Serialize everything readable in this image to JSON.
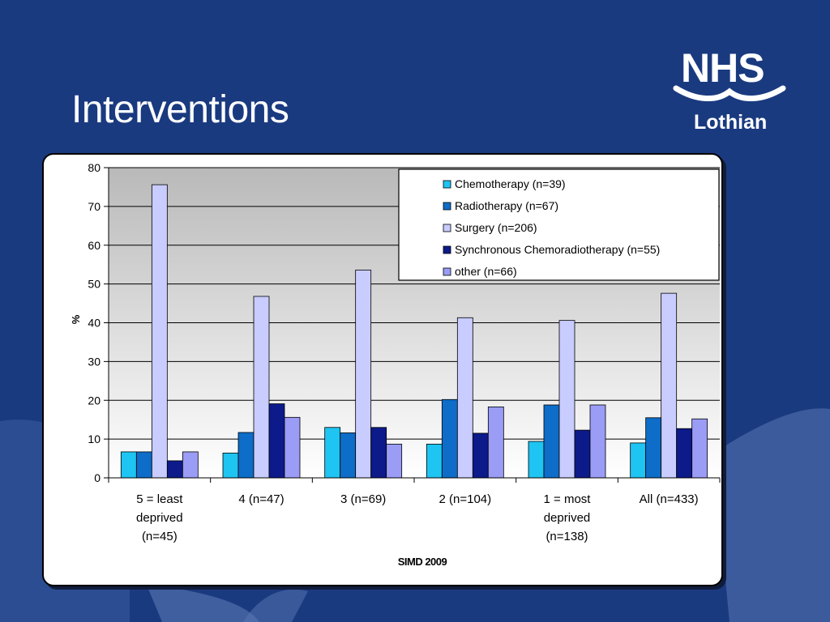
{
  "slide": {
    "title": "Interventions"
  },
  "logo": {
    "text": "NHS",
    "region": "Lothian"
  },
  "colors": {
    "background": "#1a3a80",
    "chemotherapy": "#1ec4f2",
    "radiotherapy": "#0d6dc8",
    "surgery": "#c8ccff",
    "synchronous": "#0c1a8a",
    "other": "#9a9cf6"
  },
  "chart_data": {
    "type": "bar",
    "xlabel": "SIMD 2009",
    "ylabel": "%",
    "ylim": [
      0,
      80
    ],
    "yticks": [
      0,
      10,
      20,
      30,
      40,
      50,
      60,
      70,
      80
    ],
    "grid": true,
    "legend_position": "top-right",
    "categories": [
      [
        "5 = least",
        "deprived",
        "(n=45)"
      ],
      [
        "4 (n=47)"
      ],
      [
        "3 (n=69)"
      ],
      [
        "2 (n=104)"
      ],
      [
        "1 = most",
        "deprived",
        "(n=138)"
      ],
      [
        "All (n=433)"
      ]
    ],
    "series": [
      {
        "name": "Chemotherapy (n=39)",
        "color": "#1ec4f2",
        "values": [
          6.7,
          6.4,
          13.0,
          8.7,
          9.4,
          9.0
        ]
      },
      {
        "name": "Radiotherapy (n=67)",
        "color": "#0d6dc8",
        "values": [
          6.7,
          11.7,
          11.6,
          20.2,
          18.8,
          15.5
        ]
      },
      {
        "name": "Surgery (n=206)",
        "color": "#c8ccff",
        "values": [
          75.6,
          46.8,
          53.6,
          41.3,
          40.6,
          47.6
        ]
      },
      {
        "name": "Synchronous Chemoradiotherapy (n=55)",
        "color": "#0c1a8a",
        "values": [
          4.4,
          19.1,
          13.0,
          11.5,
          12.3,
          12.7
        ]
      },
      {
        "name": "other (n=66)",
        "color": "#9a9cf6",
        "values": [
          6.7,
          15.6,
          8.7,
          18.3,
          18.8,
          15.2
        ]
      }
    ]
  }
}
